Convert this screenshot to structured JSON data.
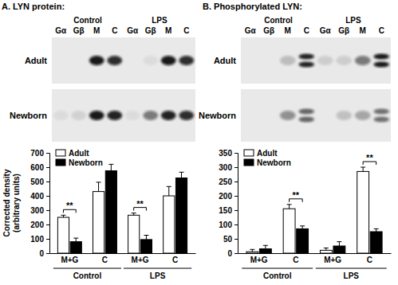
{
  "chart_data": [
    {
      "type": "bar",
      "title": "A. LYN protein:",
      "annotations": {
        "conditions": [
          "Control",
          "LPS"
        ],
        "lanes": [
          "Gα",
          "Gβ",
          "M",
          "C"
        ],
        "rows": [
          "Adult",
          "Newborn"
        ]
      },
      "ylabel": [
        "Corrected density",
        "(arbitrary units)"
      ],
      "categories": [
        "M+G",
        "C",
        "M+G",
        "C"
      ],
      "category_groups": [
        "Control",
        "LPS"
      ],
      "series": [
        {
          "name": "Adult",
          "color": "#ffffff",
          "values": [
            250,
            430,
            265,
            400
          ],
          "errors": [
            15,
            65,
            15,
            65
          ]
        },
        {
          "name": "Newborn",
          "color": "#000000",
          "values": [
            80,
            575,
            95,
            525
          ],
          "errors": [
            25,
            45,
            30,
            40
          ]
        }
      ],
      "significant": [
        true,
        false,
        true,
        false
      ],
      "significance_label": "**",
      "ylim": [
        0,
        700
      ],
      "yticks": [
        0,
        100,
        200,
        300,
        400,
        500,
        600,
        700
      ],
      "legend": "top-left"
    },
    {
      "type": "bar",
      "title": "B. Phosphorylated LYN:",
      "annotations": {
        "conditions": [
          "Control",
          "LPS"
        ],
        "lanes": [
          "Gα",
          "Gβ",
          "M",
          "C"
        ],
        "rows": [
          "Adult",
          "Newborn"
        ]
      },
      "categories": [
        "M+G",
        "C",
        "M+G",
        "C"
      ],
      "category_groups": [
        "Control",
        "LPS"
      ],
      "series": [
        {
          "name": "Adult",
          "color": "#ffffff",
          "values": [
            5,
            155,
            10,
            285
          ],
          "errors": [
            8,
            15,
            8,
            15
          ]
        },
        {
          "name": "Newborn",
          "color": "#000000",
          "values": [
            15,
            85,
            25,
            75
          ],
          "errors": [
            12,
            10,
            15,
            10
          ]
        }
      ],
      "significant": [
        false,
        true,
        false,
        true
      ],
      "significance_label": "**",
      "ylim": [
        0,
        350
      ],
      "yticks": [
        0,
        50,
        100,
        150,
        200,
        250,
        300,
        350
      ],
      "legend": "top-left"
    }
  ]
}
